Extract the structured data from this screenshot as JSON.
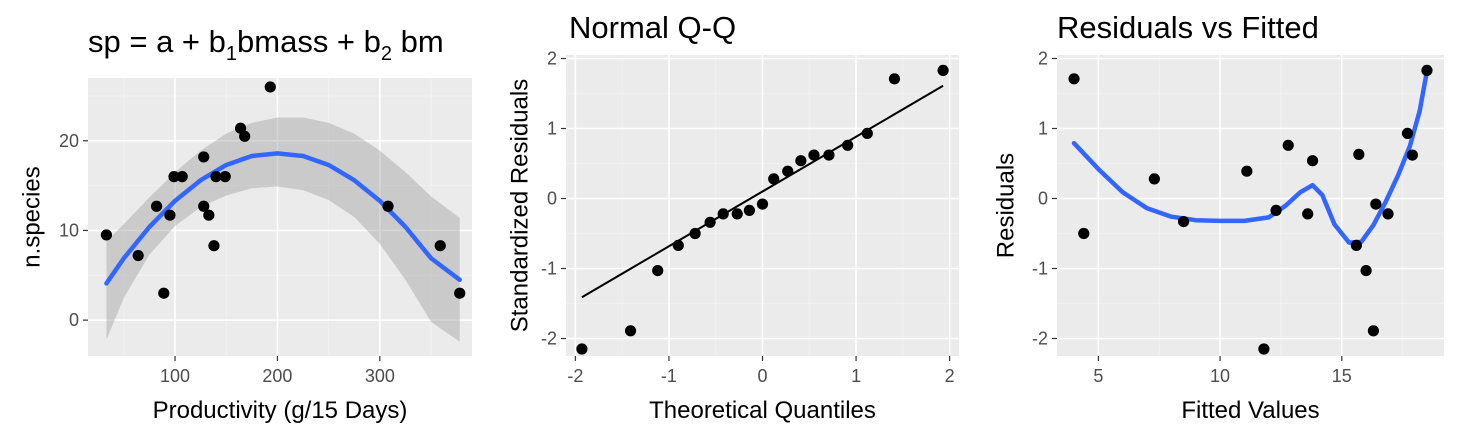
{
  "chart_data": [
    {
      "type": "scatter",
      "title": "sp = a + b1bmass + b2 bm",
      "title_parts": [
        "sp = a + b",
        "1",
        "bmass + b",
        "2",
        " bm"
      ],
      "xlabel": "Productivity (g/15 Days)",
      "ylabel": "n.species",
      "xlim": [
        15,
        390
      ],
      "ylim": [
        -4,
        27
      ],
      "xticks": [
        100,
        200,
        300
      ],
      "yticks": [
        0,
        10,
        20
      ],
      "xtick_labels": [
        "100",
        "200",
        "300"
      ],
      "ytick_labels": [
        "0",
        "10",
        "20"
      ],
      "points": [
        [
          33,
          9.5
        ],
        [
          64,
          7.2
        ],
        [
          82,
          12.7
        ],
        [
          89,
          3
        ],
        [
          95,
          11.7
        ],
        [
          99,
          16
        ],
        [
          107,
          16
        ],
        [
          128,
          18.2
        ],
        [
          128,
          12.7
        ],
        [
          133,
          11.7
        ],
        [
          138,
          8.3
        ],
        [
          140,
          16
        ],
        [
          149,
          16
        ],
        [
          164,
          21.4
        ],
        [
          168,
          20.5
        ],
        [
          193,
          26
        ],
        [
          308,
          12.7
        ],
        [
          359,
          8.3
        ],
        [
          378,
          3
        ]
      ],
      "fit_line": [
        [
          33,
          4.1
        ],
        [
          50,
          6.9
        ],
        [
          75,
          10.4
        ],
        [
          100,
          13.3
        ],
        [
          125,
          15.6
        ],
        [
          150,
          17.3
        ],
        [
          175,
          18.3
        ],
        [
          200,
          18.6
        ],
        [
          225,
          18.3
        ],
        [
          250,
          17.3
        ],
        [
          275,
          15.6
        ],
        [
          300,
          13.3
        ],
        [
          325,
          10.4
        ],
        [
          350,
          6.9
        ],
        [
          378,
          4.5
        ]
      ],
      "ci_upper": [
        [
          33,
          8.8
        ],
        [
          50,
          10.7
        ],
        [
          75,
          13.7
        ],
        [
          100,
          16.5
        ],
        [
          125,
          18.9
        ],
        [
          150,
          20.8
        ],
        [
          175,
          22.0
        ],
        [
          200,
          22.6
        ],
        [
          225,
          22.6
        ],
        [
          250,
          22.0
        ],
        [
          275,
          20.8
        ],
        [
          300,
          18.9
        ],
        [
          325,
          16.5
        ],
        [
          350,
          13.8
        ],
        [
          378,
          11.4
        ]
      ],
      "ci_lower": [
        [
          33,
          -2.2
        ],
        [
          50,
          2.5
        ],
        [
          75,
          7.3
        ],
        [
          100,
          10.5
        ],
        [
          125,
          12.6
        ],
        [
          150,
          13.9
        ],
        [
          175,
          14.7
        ],
        [
          200,
          14.9
        ],
        [
          225,
          14.5
        ],
        [
          250,
          13.4
        ],
        [
          275,
          11.5
        ],
        [
          300,
          8.5
        ],
        [
          325,
          4.5
        ],
        [
          350,
          -0.2
        ],
        [
          378,
          -2.4
        ]
      ],
      "colors": {
        "point": "#000000",
        "line": "#3366FF",
        "band": "#999999",
        "panel": "#EBEBEB"
      }
    },
    {
      "type": "scatter",
      "title": "Normal Q-Q",
      "xlabel": "Theoretical Quantiles",
      "ylabel": "Standardized Residuals",
      "xlim": [
        -2.1,
        2.1
      ],
      "ylim": [
        -2.25,
        2.05
      ],
      "xticks": [
        -2,
        -1,
        0,
        1,
        2
      ],
      "yticks": [
        -2,
        -1,
        0,
        1,
        2
      ],
      "xtick_labels": [
        "-2",
        "-1",
        "0",
        "1",
        "2"
      ],
      "ytick_labels": [
        "-2",
        "-1",
        "0",
        "1",
        "2"
      ],
      "points": [
        [
          -1.93,
          -2.15
        ],
        [
          -1.41,
          -1.89
        ],
        [
          -1.12,
          -1.03
        ],
        [
          -0.9,
          -0.67
        ],
        [
          -0.72,
          -0.5
        ],
        [
          -0.56,
          -0.34
        ],
        [
          -0.42,
          -0.22
        ],
        [
          -0.27,
          -0.22
        ],
        [
          -0.14,
          -0.17
        ],
        [
          0.0,
          -0.08
        ],
        [
          0.12,
          0.28
        ],
        [
          0.27,
          0.39
        ],
        [
          0.41,
          0.54
        ],
        [
          0.55,
          0.62
        ],
        [
          0.71,
          0.62
        ],
        [
          0.91,
          0.76
        ],
        [
          1.12,
          0.93
        ],
        [
          1.41,
          1.71
        ],
        [
          1.93,
          1.83
        ]
      ],
      "ref_line": [
        [
          -1.93,
          -1.41
        ],
        [
          1.93,
          1.61
        ]
      ],
      "colors": {
        "point": "#000000",
        "line": "#000000",
        "panel": "#EBEBEB"
      }
    },
    {
      "type": "scatter",
      "title": "Residuals vs Fitted",
      "xlabel": "Fitted Values",
      "ylabel": "Residuals",
      "xlim": [
        3.3,
        19.2
      ],
      "ylim": [
        -2.25,
        2.05
      ],
      "xticks": [
        5,
        10,
        15
      ],
      "yticks": [
        -2,
        -1,
        0,
        1,
        2
      ],
      "xtick_labels": [
        "5",
        "10",
        "15"
      ],
      "ytick_labels": [
        "-2",
        "-1",
        "0",
        "1",
        "2"
      ],
      "points": [
        [
          4.0,
          1.71
        ],
        [
          4.4,
          -0.5
        ],
        [
          7.3,
          0.28
        ],
        [
          8.5,
          -0.33
        ],
        [
          11.1,
          0.39
        ],
        [
          11.8,
          -2.15
        ],
        [
          12.3,
          -0.17
        ],
        [
          12.8,
          0.76
        ],
        [
          13.6,
          -0.22
        ],
        [
          13.8,
          0.54
        ],
        [
          15.6,
          -0.67
        ],
        [
          15.7,
          0.63
        ],
        [
          16.0,
          -1.03
        ],
        [
          16.3,
          -1.89
        ],
        [
          16.4,
          -0.08
        ],
        [
          16.9,
          -0.22
        ],
        [
          17.7,
          0.93
        ],
        [
          17.9,
          0.62
        ],
        [
          18.5,
          1.83
        ]
      ],
      "smooth_line": [
        [
          4.0,
          0.79
        ],
        [
          5.0,
          0.42
        ],
        [
          6.0,
          0.09
        ],
        [
          7.0,
          -0.14
        ],
        [
          8.0,
          -0.26
        ],
        [
          9.0,
          -0.31
        ],
        [
          10.0,
          -0.32
        ],
        [
          11.0,
          -0.32
        ],
        [
          12.0,
          -0.27
        ],
        [
          12.7,
          -0.1
        ],
        [
          13.3,
          0.09
        ],
        [
          13.8,
          0.19
        ],
        [
          14.2,
          0.05
        ],
        [
          14.7,
          -0.37
        ],
        [
          15.3,
          -0.63
        ],
        [
          15.8,
          -0.62
        ],
        [
          16.3,
          -0.38
        ],
        [
          16.8,
          -0.05
        ],
        [
          17.3,
          0.32
        ],
        [
          17.8,
          0.75
        ],
        [
          18.2,
          1.25
        ],
        [
          18.5,
          1.82
        ]
      ],
      "colors": {
        "point": "#000000",
        "line": "#3366FF",
        "panel": "#EBEBEB"
      }
    }
  ]
}
